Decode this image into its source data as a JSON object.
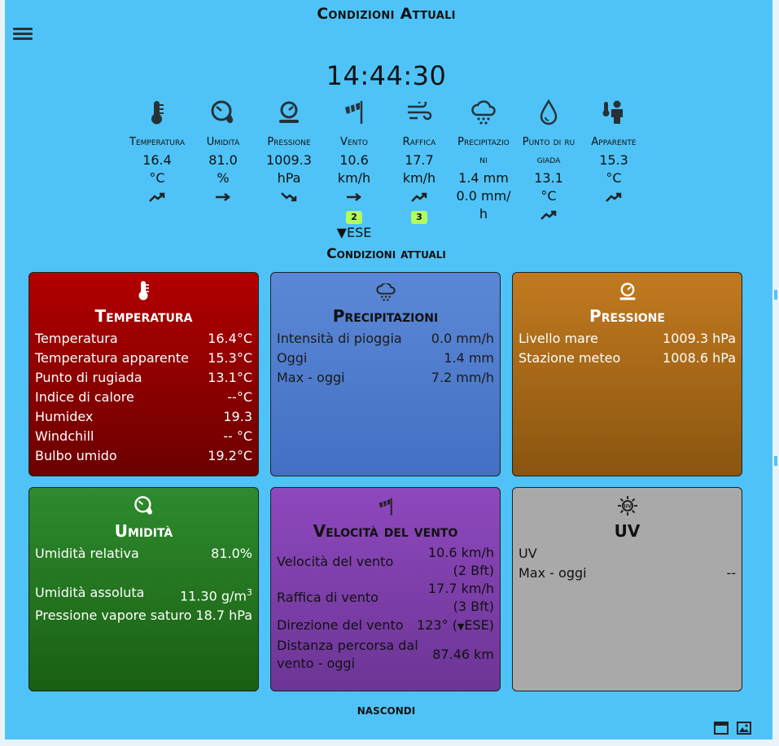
{
  "header": {
    "title": "Condizioni Attuali",
    "clock": "14:44:30"
  },
  "metrics": [
    {
      "icon": "thermometer-icon",
      "label": "Temperatura",
      "value": "16.4",
      "unit": "°C",
      "trend": "rising"
    },
    {
      "icon": "humidity-gauge-icon",
      "label": "Umidità",
      "value": "81.0",
      "unit": "%",
      "trend": "steady"
    },
    {
      "icon": "pressure-icon",
      "label": "Pressione",
      "value": "1009.3",
      "unit": "hPa",
      "trend": "falling"
    },
    {
      "icon": "windsock-icon",
      "label": "Vento",
      "value": "10.6",
      "unit": "km/h",
      "trend": "steady",
      "badge": "2",
      "direction": "ESE"
    },
    {
      "icon": "wind-gust-icon",
      "label": "Raffica",
      "value": "17.7",
      "unit": "km/h",
      "trend": "rising",
      "badge": "3"
    },
    {
      "icon": "rain-cloud-icon",
      "label": "Precipitazioni",
      "value": "1.4 mm",
      "unit": "0.0 mm/ h"
    },
    {
      "icon": "dew-drop-icon",
      "label": "Punto di rugiada",
      "value": "13.1",
      "unit": "°C",
      "trend": "rising"
    },
    {
      "icon": "apparent-temperature-icon",
      "label": "Apparente",
      "value": "15.3",
      "unit": "°C",
      "trend": "rising"
    }
  ],
  "section_title": "Condizioni attuali",
  "cards": {
    "temperatura": {
      "title": "Temperatura",
      "rows": [
        {
          "label": "Temperatura",
          "value": "16.4°C"
        },
        {
          "label": "Temperatura apparente",
          "value": "15.3°C"
        },
        {
          "label": "Punto di rugiada",
          "value": "13.1°C"
        },
        {
          "label": "Indice di calore",
          "value": "--°C"
        },
        {
          "label": "Humidex",
          "value": "19.3"
        },
        {
          "label": "Windchill",
          "value": "-- °C"
        },
        {
          "label": "Bulbo umido",
          "value": "19.2°C"
        }
      ]
    },
    "precipitazioni": {
      "title": "Precipitazioni",
      "rows": [
        {
          "label": "Intensità di pioggia",
          "value": "0.0 mm/h"
        },
        {
          "label": "Oggi",
          "value": "1.4 mm"
        },
        {
          "label": "Max - oggi",
          "value": "7.2 mm/h"
        }
      ]
    },
    "pressione": {
      "title": "Pressione",
      "rows": [
        {
          "label": "Livello mare",
          "value": "1009.3 hPa"
        },
        {
          "label": "Stazione meteo",
          "value": "1008.6 hPa"
        }
      ]
    },
    "umidita": {
      "title": "Umidità",
      "rows": [
        {
          "label": "Umidità relativa",
          "value": "81.0%"
        },
        {
          "label": "Umidità assoluta",
          "value": "11.30 g/m",
          "sup": "3"
        },
        {
          "label": "Pressione vapore saturo",
          "value": "18.7 hPa"
        }
      ]
    },
    "vento": {
      "title": "Velocità del vento",
      "rows": [
        {
          "label": "Velocità del vento",
          "value": "10.6 km/h",
          "sub": "(2 Bft)"
        },
        {
          "label": "Raffica di vento",
          "value": "17.7 km/h",
          "sub": "(3 Bft)"
        },
        {
          "label": "Direzione del vento",
          "value": "123° (",
          "dir": "ESE)"
        },
        {
          "label": "Distanza percorsa dal",
          "label2": "vento - oggi",
          "value": "87.46 km"
        }
      ]
    },
    "uv": {
      "title": "UV",
      "rows": [
        {
          "label": "UV",
          "value": ""
        },
        {
          "label": "Max - oggi",
          "value": "--"
        }
      ]
    }
  },
  "footer": {
    "hide_label": "NASCONDI"
  }
}
